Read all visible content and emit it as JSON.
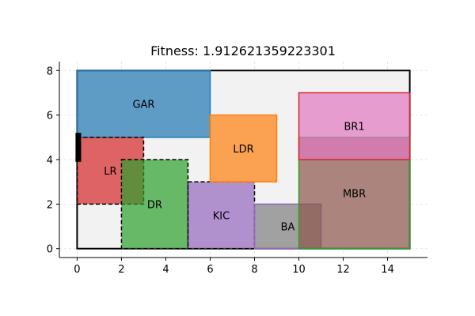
{
  "chart_data": {
    "type": "floorplan",
    "title": "Fitness: 1.912621359223301",
    "xlim": [
      -0.8,
      15.8
    ],
    "ylim": [
      -0.4,
      8.4
    ],
    "x_ticks": [
      0,
      2,
      4,
      6,
      8,
      10,
      12,
      14
    ],
    "y_ticks": [
      0,
      2,
      4,
      6,
      8
    ],
    "grid": true,
    "boundary": {
      "x": 0,
      "y": 0,
      "w": 15,
      "h": 8,
      "fill": "#f2f2f2",
      "stroke": "#000000"
    },
    "door": {
      "x": 0,
      "y": 3.9,
      "w": 0.25,
      "h": 1.3,
      "color": "#000000"
    },
    "rooms": [
      {
        "label": "GAR",
        "x": 0,
        "y": 5,
        "w": 6,
        "h": 3,
        "fill": "#1f77b4",
        "stroke": "#1f77b4",
        "dashed": false
      },
      {
        "label": "LR",
        "x": 0,
        "y": 2,
        "w": 3,
        "h": 3,
        "fill": "#d62728",
        "stroke": "#000000",
        "dashed": true
      },
      {
        "label": "DR",
        "x": 2,
        "y": 0,
        "w": 3,
        "h": 4,
        "fill": "#2ca02c",
        "stroke": "#000000",
        "dashed": true
      },
      {
        "label": "KIC",
        "x": 5,
        "y": 0,
        "w": 3,
        "h": 3,
        "fill": "#9467bd",
        "stroke": "#000000",
        "dashed": true
      },
      {
        "label": "LDR",
        "x": 6,
        "y": 3,
        "w": 3,
        "h": 3,
        "fill": "#ff7f0e",
        "stroke": "#ff7f0e",
        "dashed": false
      },
      {
        "label": "BA",
        "x": 8,
        "y": 0,
        "w": 3,
        "h": 2,
        "fill": "#7f7f7f",
        "stroke": "#9467bd",
        "dashed": false
      },
      {
        "label": "MBR",
        "x": 10,
        "y": 0,
        "w": 5,
        "h": 5,
        "fill": "#8c564b",
        "stroke": "#2ca02c",
        "dashed": false
      },
      {
        "label": "BR1",
        "x": 10,
        "y": 4,
        "w": 5,
        "h": 3,
        "fill": "#e377c2",
        "stroke": "#d62728",
        "dashed": false
      }
    ],
    "room_label_positions": [
      {
        "label": "GAR",
        "x": 3.0,
        "y": 6.5
      },
      {
        "label": "LR",
        "x": 1.5,
        "y": 3.5
      },
      {
        "label": "DR",
        "x": 3.5,
        "y": 2.0
      },
      {
        "label": "KIC",
        "x": 6.5,
        "y": 1.5
      },
      {
        "label": "LDR",
        "x": 7.5,
        "y": 4.5
      },
      {
        "label": "BA",
        "x": 9.5,
        "y": 1.0
      },
      {
        "label": "MBR",
        "x": 12.5,
        "y": 2.5
      },
      {
        "label": "BR1",
        "x": 12.5,
        "y": 5.5
      }
    ]
  }
}
